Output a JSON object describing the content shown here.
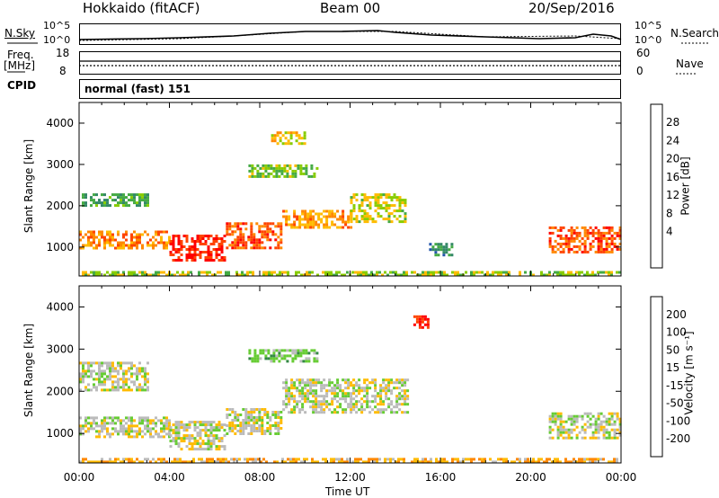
{
  "header": {
    "radar": "Hokkaido (fitACF)",
    "beam": "Beam 00",
    "date": "20/Sep/2016"
  },
  "strip": {
    "nsky_label": "N.Sky",
    "nsky_ticks": [
      "10^5",
      "10^0"
    ],
    "nsearch_label": "N.Search",
    "nsearch_ticks": [
      "10^5",
      "10^0"
    ],
    "freq_label": "Freq.",
    "freq_unit": "[MHz]",
    "freq_ticks": [
      "18",
      "8"
    ],
    "nave_label": "Nave",
    "nave_ticks": [
      "60",
      "0"
    ],
    "cpid_label": "CPID",
    "cpid_value": "normal (fast) 151"
  },
  "axes": {
    "x_ticks": [
      "00:00",
      "04:00",
      "08:00",
      "12:00",
      "16:00",
      "20:00",
      "00:00"
    ],
    "xlabel": "Time UT",
    "y_ticks": [
      "4000",
      "3000",
      "2000",
      "1000"
    ],
    "ylabel": "Slant Range [km]"
  },
  "power_scale": {
    "label": "Power [dB]",
    "ticks": [
      "28",
      "24",
      "20",
      "16",
      "12",
      "8",
      "4"
    ],
    "colors": [
      "#ff0000",
      "#ff4400",
      "#ff8800",
      "#ffbb00",
      "#88cc00",
      "#44aa44",
      "#338866",
      "#2255aa",
      "#0000ff"
    ]
  },
  "velocity_scale": {
    "label": "Velocity [m s⁻¹]",
    "ticks": [
      "200",
      "100",
      "50",
      "15",
      "-15",
      "-50",
      "-100",
      "-200"
    ],
    "colors": [
      "#2233aa",
      "#2266aa",
      "#338844",
      "#66cc33",
      "#bbbbbb",
      "#ffbb00",
      "#ff8800",
      "#ff4400",
      "#ff0000"
    ]
  },
  "chart_data": [
    {
      "type": "heatmap",
      "name": "power",
      "x_unit": "hours UT",
      "xlim": [
        0,
        24
      ],
      "ylim": [
        300,
        4500
      ],
      "bands": [
        {
          "x0": 0.0,
          "x1": 4.0,
          "y0": 950,
          "y1": 1400,
          "level": 0.75
        },
        {
          "x0": 4.0,
          "x1": 6.5,
          "y0": 650,
          "y1": 1300,
          "level": 0.95
        },
        {
          "x0": 6.5,
          "x1": 9.0,
          "y0": 1000,
          "y1": 1600,
          "level": 0.85
        },
        {
          "x0": 9.0,
          "x1": 12.0,
          "y0": 1500,
          "y1": 1900,
          "level": 0.7
        },
        {
          "x0": 12.0,
          "x1": 14.5,
          "y0": 1600,
          "y1": 2300,
          "level": 0.55
        },
        {
          "x0": 20.8,
          "x1": 24.0,
          "y0": 900,
          "y1": 1500,
          "level": 0.85
        },
        {
          "x0": 7.5,
          "x1": 10.5,
          "y0": 2700,
          "y1": 3000,
          "level": 0.45
        },
        {
          "x0": 0.0,
          "x1": 3.0,
          "y0": 2000,
          "y1": 2300,
          "level": 0.35
        },
        {
          "x0": 8.5,
          "x1": 10.0,
          "y0": 3500,
          "y1": 3800,
          "level": 0.6
        },
        {
          "x0": 15.5,
          "x1": 16.5,
          "y0": 800,
          "y1": 1100,
          "level": 0.3
        },
        {
          "x0": 0.0,
          "x1": 24.0,
          "y0": 300,
          "y1": 420,
          "level": 0.5
        }
      ]
    },
    {
      "type": "heatmap",
      "name": "velocity",
      "x_unit": "hours UT",
      "xlim": [
        0,
        24
      ],
      "ylim": [
        300,
        4500
      ],
      "bands": [
        {
          "x0": 0.0,
          "x1": 4.0,
          "y0": 950,
          "y1": 1400,
          "level": 0.5
        },
        {
          "x0": 4.0,
          "x1": 6.5,
          "y0": 650,
          "y1": 1300,
          "level": 0.5
        },
        {
          "x0": 6.5,
          "x1": 9.0,
          "y0": 1000,
          "y1": 1600,
          "level": 0.5
        },
        {
          "x0": 9.0,
          "x1": 14.5,
          "y0": 1500,
          "y1": 2300,
          "level": 0.5
        },
        {
          "x0": 20.8,
          "x1": 24.0,
          "y0": 900,
          "y1": 1500,
          "level": 0.5
        },
        {
          "x0": 7.5,
          "x1": 10.5,
          "y0": 2700,
          "y1": 3000,
          "level": 0.62
        },
        {
          "x0": 0.0,
          "x1": 3.0,
          "y0": 2000,
          "y1": 2700,
          "level": 0.5
        },
        {
          "x0": 14.8,
          "x1": 15.5,
          "y0": 3500,
          "y1": 3800,
          "level": 0.05
        },
        {
          "x0": 0.0,
          "x1": 24.0,
          "y0": 300,
          "y1": 420,
          "level": 0.35
        }
      ]
    }
  ]
}
